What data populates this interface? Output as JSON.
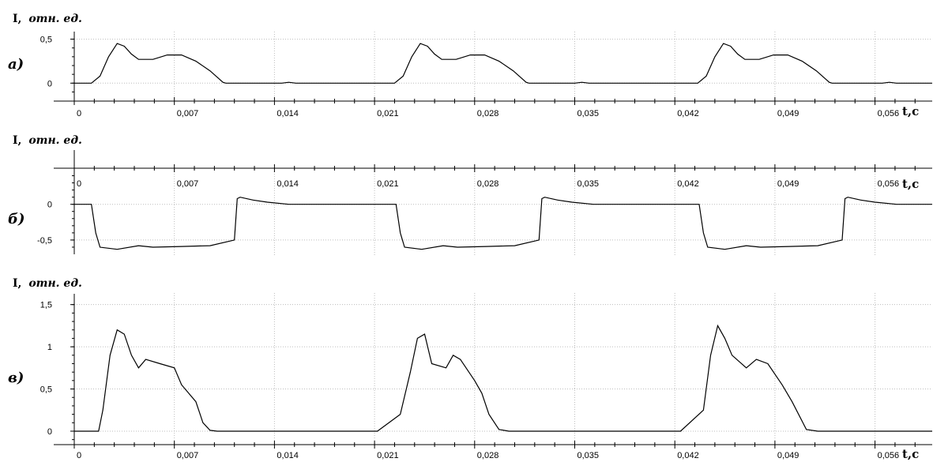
{
  "chart_data": [
    {
      "type": "line",
      "panel_label": "а)",
      "ylabel": "I,",
      "ylabel_unit": "отн. ед.",
      "xlabel": "t,c",
      "xlim": [
        0,
        0.06
      ],
      "ylim": [
        -0.15,
        0.55
      ],
      "x_ticks": [
        "0",
        "0,007",
        "0,014",
        "0,021",
        "0,028",
        "0,035",
        "0,042",
        "0,049",
        "0,056"
      ],
      "y_ticks": [
        {
          "value": 0,
          "label": "0"
        },
        {
          "value": 0.5,
          "label": "0,5"
        }
      ],
      "grid": true,
      "series": [
        {
          "x": [
            0,
            0.0012,
            0.0018,
            0.0024,
            0.003,
            0.0035,
            0.004,
            0.0045,
            0.0055,
            0.0065,
            0.0075,
            0.0085,
            0.0095,
            0.0104,
            0.0106,
            0.0145,
            0.015,
            0.0155,
            0.0212,
            0.0224,
            0.023,
            0.0236,
            0.0242,
            0.0247,
            0.0252,
            0.0257,
            0.0267,
            0.0277,
            0.0287,
            0.0297,
            0.0307,
            0.0316,
            0.0318,
            0.035,
            0.0355,
            0.036,
            0.0424,
            0.0436,
            0.0442,
            0.0448,
            0.0454,
            0.0459,
            0.0464,
            0.0469,
            0.0479,
            0.0489,
            0.0499,
            0.0509,
            0.0519,
            0.0528,
            0.053,
            0.0565,
            0.057,
            0.0575,
            0.06
          ],
          "y": [
            0,
            0,
            0.08,
            0.3,
            0.45,
            0.42,
            0.33,
            0.27,
            0.27,
            0.32,
            0.32,
            0.25,
            0.14,
            0.01,
            0,
            0,
            0.01,
            0,
            0,
            0,
            0.08,
            0.3,
            0.45,
            0.42,
            0.33,
            0.27,
            0.27,
            0.32,
            0.32,
            0.25,
            0.14,
            0.01,
            0,
            0,
            0.01,
            0,
            0,
            0,
            0.08,
            0.3,
            0.45,
            0.42,
            0.33,
            0.27,
            0.27,
            0.32,
            0.32,
            0.25,
            0.14,
            0.01,
            0,
            0,
            0.01,
            0,
            0
          ]
        }
      ]
    },
    {
      "type": "line",
      "panel_label": "б)",
      "ylabel": "I,",
      "ylabel_unit": "отн. ед.",
      "xlabel": "t,c",
      "xlim": [
        0,
        0.06
      ],
      "ylim": [
        -0.7,
        0.45
      ],
      "x_ticks": [
        "0",
        "0,007",
        "0,014",
        "0,021",
        "0,028",
        "0,035",
        "0,042",
        "0,049",
        "0,056"
      ],
      "y_ticks": [
        {
          "value": 0,
          "label": "0"
        },
        {
          "value": -0.5,
          "label": "-0,5"
        }
      ],
      "grid": true,
      "series": [
        {
          "x": [
            -0.0002,
            0.0012,
            0.0015,
            0.0018,
            0.003,
            0.0045,
            0.0055,
            0.0075,
            0.0095,
            0.0112,
            0.0114,
            0.0116,
            0.0125,
            0.0135,
            0.015,
            0.0212,
            0.0225,
            0.0228,
            0.0231,
            0.0243,
            0.0258,
            0.0268,
            0.0288,
            0.0308,
            0.0325,
            0.0327,
            0.0329,
            0.0338,
            0.0348,
            0.0363,
            0.0424,
            0.0437,
            0.044,
            0.0443,
            0.0455,
            0.047,
            0.048,
            0.05,
            0.052,
            0.0537,
            0.0539,
            0.0541,
            0.055,
            0.056,
            0.0575,
            0.06
          ],
          "y": [
            0,
            0,
            -0.4,
            -0.6,
            -0.63,
            -0.58,
            -0.6,
            -0.59,
            -0.58,
            -0.5,
            0.08,
            0.1,
            0.06,
            0.03,
            0,
            0,
            0,
            -0.4,
            -0.6,
            -0.63,
            -0.58,
            -0.6,
            -0.59,
            -0.58,
            -0.5,
            0.08,
            0.1,
            0.06,
            0.03,
            0,
            0,
            0,
            -0.4,
            -0.6,
            -0.63,
            -0.58,
            -0.6,
            -0.59,
            -0.58,
            -0.5,
            0.08,
            0.1,
            0.06,
            0.03,
            0,
            0
          ]
        }
      ]
    },
    {
      "type": "line",
      "panel_label": "в)",
      "ylabel": "I,",
      "ylabel_unit": "отн. ед.",
      "xlabel": "t,c",
      "xlim": [
        0,
        0.06
      ],
      "ylim": [
        -0.15,
        1.6
      ],
      "x_ticks": [
        "0",
        "0,007",
        "0,014",
        "0,021",
        "0,028",
        "0,035",
        "0,042",
        "0,049",
        "0,056"
      ],
      "y_ticks": [
        {
          "value": 0,
          "label": "0"
        },
        {
          "value": 0.5,
          "label": "0,5"
        },
        {
          "value": 1,
          "label": "1"
        },
        {
          "value": 1.5,
          "label": "1,5"
        }
      ],
      "grid": true,
      "series": [
        {
          "x": [
            0,
            0.0017,
            0.002,
            0.0025,
            0.003,
            0.0035,
            0.004,
            0.0045,
            0.005,
            0.006,
            0.007,
            0.0075,
            0.0085,
            0.009,
            0.0095,
            0.01,
            0.015,
            0.0212,
            0.0228,
            0.0235,
            0.024,
            0.0245,
            0.025,
            0.026,
            0.0265,
            0.027,
            0.028,
            0.0285,
            0.029,
            0.0297,
            0.0304,
            0.0312,
            0.035,
            0.0424,
            0.044,
            0.0445,
            0.045,
            0.0455,
            0.046,
            0.047,
            0.0477,
            0.0485,
            0.0495,
            0.0502,
            0.0512,
            0.052,
            0.06
          ],
          "y": [
            0,
            0,
            0.25,
            0.9,
            1.2,
            1.15,
            0.9,
            0.75,
            0.85,
            0.8,
            0.75,
            0.55,
            0.35,
            0.1,
            0.01,
            0,
            0,
            0,
            0.2,
            0.7,
            1.1,
            1.15,
            0.8,
            0.75,
            0.9,
            0.85,
            0.6,
            0.45,
            0.2,
            0.02,
            0,
            0,
            0,
            0,
            0.25,
            0.9,
            1.25,
            1.1,
            0.9,
            0.75,
            0.85,
            0.8,
            0.55,
            0.35,
            0.02,
            0,
            0
          ]
        }
      ]
    }
  ]
}
